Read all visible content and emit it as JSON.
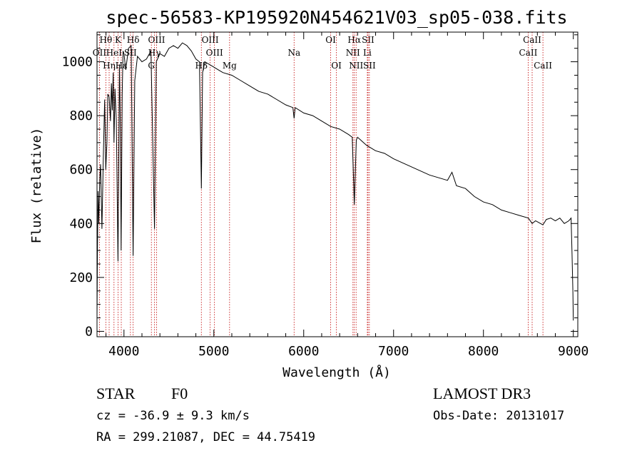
{
  "chart_data": {
    "type": "line",
    "title": "spec-56583-KP195920N454621V03_sp05-038.fits",
    "xlabel": "Wavelength (Å)",
    "ylabel": "Flux (relative)",
    "xlim": [
      3700,
      9050
    ],
    "ylim": [
      -20,
      1110
    ],
    "x_ticks": [
      4000,
      5000,
      6000,
      7000,
      8000,
      9000
    ],
    "y_ticks": [
      0,
      200,
      400,
      600,
      800,
      1000
    ],
    "line_color": "#000000",
    "marker_color": "#c00000",
    "spectrum": {
      "x": [
        3700,
        3705,
        3712,
        3720,
        3730,
        3740,
        3755,
        3770,
        3785,
        3798,
        3810,
        3820,
        3835,
        3850,
        3860,
        3870,
        3880,
        3889,
        3900,
        3915,
        3933,
        3950,
        3960,
        3968,
        3980,
        3990,
        4000,
        4020,
        4050,
        4080,
        4102,
        4120,
        4150,
        4200,
        4250,
        4300,
        4340,
        4360,
        4400,
        4450,
        4500,
        4550,
        4600,
        4650,
        4700,
        4750,
        4800,
        4840,
        4861,
        4875,
        4900,
        4950,
        5000,
        5050,
        5100,
        5200,
        5300,
        5400,
        5500,
        5600,
        5700,
        5800,
        5880,
        5893,
        5905,
        6000,
        6100,
        6200,
        6300,
        6400,
        6500,
        6540,
        6563,
        6585,
        6600,
        6700,
        6800,
        6900,
        7000,
        7200,
        7400,
        7600,
        7650,
        7700,
        7800,
        7900,
        8000,
        8100,
        8200,
        8300,
        8400,
        8500,
        8542,
        8580,
        8662,
        8700,
        8750,
        8800,
        8850,
        8900,
        8950,
        8975,
        8985,
        8995,
        9000
      ],
      "y": [
        50,
        300,
        520,
        400,
        560,
        620,
        380,
        640,
        860,
        600,
        700,
        880,
        870,
        780,
        920,
        820,
        960,
        700,
        900,
        780,
        260,
        990,
        740,
        300,
        880,
        1040,
        1030,
        970,
        1050,
        1060,
        280,
        930,
        1020,
        1000,
        1010,
        1040,
        380,
        1000,
        1030,
        1020,
        1050,
        1060,
        1050,
        1070,
        1060,
        1040,
        1010,
        1000,
        530,
        960,
        1000,
        990,
        980,
        970,
        960,
        950,
        930,
        910,
        890,
        880,
        860,
        840,
        830,
        790,
        830,
        810,
        800,
        780,
        760,
        750,
        730,
        720,
        470,
        710,
        720,
        690,
        670,
        660,
        640,
        610,
        580,
        560,
        590,
        540,
        530,
        500,
        480,
        470,
        450,
        440,
        430,
        420,
        400,
        410,
        395,
        415,
        420,
        410,
        420,
        400,
        410,
        420,
        300,
        150,
        40
      ]
    },
    "spectral_lines": [
      {
        "name": "Hθ",
        "wavelength": 3798,
        "tier": 0
      },
      {
        "name": "K",
        "wavelength": 3934,
        "tier": 0
      },
      {
        "name": "Hδ",
        "wavelength": 4102,
        "tier": 0
      },
      {
        "name": "OIII",
        "wavelength": 4363,
        "tier": 0
      },
      {
        "name": "OIII",
        "wavelength": 4959,
        "tier": 0
      },
      {
        "name": "OI",
        "wavelength": 6300,
        "tier": 0
      },
      {
        "name": "Hα",
        "wavelength": 6563,
        "tier": 0
      },
      {
        "name": "SII",
        "wavelength": 6716,
        "tier": 0
      },
      {
        "name": "CaII",
        "wavelength": 8542,
        "tier": 0
      },
      {
        "name": "OII",
        "wavelength": 3727,
        "tier": 1
      },
      {
        "name": "HeI",
        "wavelength": 3889,
        "tier": 1
      },
      {
        "name": "SII",
        "wavelength": 4072,
        "tier": 1
      },
      {
        "name": "Hγ",
        "wavelength": 4340,
        "tier": 1
      },
      {
        "name": "OIII",
        "wavelength": 5007,
        "tier": 1
      },
      {
        "name": "Na",
        "wavelength": 5893,
        "tier": 1
      },
      {
        "name": "NII",
        "wavelength": 6548,
        "tier": 1
      },
      {
        "name": "Li",
        "wavelength": 6708,
        "tier": 1
      },
      {
        "name": "CaII",
        "wavelength": 8498,
        "tier": 1
      },
      {
        "name": "Hη",
        "wavelength": 3835,
        "tier": 2
      },
      {
        "name": "Hε",
        "wavelength": 3970,
        "tier": 2
      },
      {
        "name": "G",
        "wavelength": 4305,
        "tier": 2
      },
      {
        "name": "Hβ",
        "wavelength": 4861,
        "tier": 2
      },
      {
        "name": "Mg",
        "wavelength": 5175,
        "tier": 2
      },
      {
        "name": "OI",
        "wavelength": 6364,
        "tier": 2
      },
      {
        "name": "NII",
        "wavelength": 6583,
        "tier": 2
      },
      {
        "name": "SII",
        "wavelength": 6731,
        "tier": 2
      },
      {
        "name": "CaII",
        "wavelength": 8662,
        "tier": 2
      }
    ]
  },
  "info": {
    "object_class": "STAR",
    "subclass": "F0",
    "survey": "LAMOST DR3",
    "cz": "cz = -36.9 ± 9.3 km/s",
    "obs_date": "Obs-Date: 20131017",
    "coords": "RA = 299.21087, DEC =  44.75419"
  }
}
